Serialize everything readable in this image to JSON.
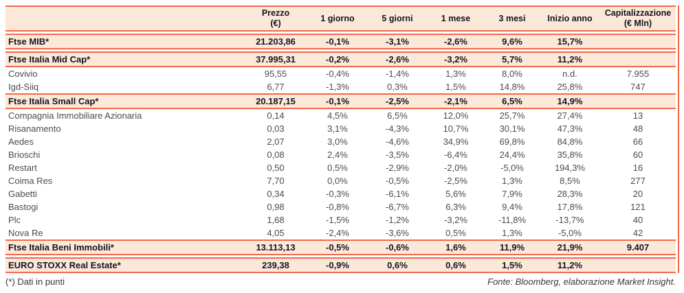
{
  "table": {
    "header": {
      "name_label": "",
      "cols": [
        "Prezzo\n(€)",
        "1 giorno",
        "5 giorni",
        "1 mese",
        "3 mesi",
        "Inizio anno",
        "Capitalizzazione\n(€ Mln)"
      ]
    },
    "rows": [
      {
        "name": "Ftse MIB*",
        "type": "index",
        "values": [
          "21.203,86",
          "-0,1%",
          "-3,1%",
          "-2,6%",
          "9,6%",
          "15,7%",
          ""
        ]
      },
      {
        "name": "Ftse Italia Mid Cap*",
        "type": "index",
        "values": [
          "37.995,31",
          "-0,2%",
          "-2,6%",
          "-3,2%",
          "5,7%",
          "11,2%",
          ""
        ]
      },
      {
        "name": "Covivio",
        "type": "stock",
        "values": [
          "95,55",
          "-0,4%",
          "-1,4%",
          "1,3%",
          "8,0%",
          "n.d.",
          "7.955"
        ]
      },
      {
        "name": "Igd-Siiq",
        "type": "stock",
        "values": [
          "6,77",
          "-1,3%",
          "0,3%",
          "1,5%",
          "14,8%",
          "25,8%",
          "747"
        ]
      },
      {
        "name": "Ftse Italia Small Cap*",
        "type": "index",
        "values": [
          "20.187,15",
          "-0,1%",
          "-2,5%",
          "-2,1%",
          "6,5%",
          "14,9%",
          ""
        ]
      },
      {
        "name": "Compagnia Immobiliare Azionaria",
        "type": "stock",
        "values": [
          "0,14",
          "4,5%",
          "6,5%",
          "12,0%",
          "25,7%",
          "27,4%",
          "13"
        ]
      },
      {
        "name": "Risanamento",
        "type": "stock",
        "values": [
          "0,03",
          "3,1%",
          "-4,3%",
          "10,7%",
          "30,1%",
          "47,3%",
          "48"
        ]
      },
      {
        "name": "Aedes",
        "type": "stock",
        "values": [
          "2,07",
          "3,0%",
          "-4,6%",
          "34,9%",
          "69,8%",
          "84,8%",
          "66"
        ]
      },
      {
        "name": "Brioschi",
        "type": "stock",
        "values": [
          "0,08",
          "2,4%",
          "-3,5%",
          "-6,4%",
          "24,4%",
          "35,8%",
          "60"
        ]
      },
      {
        "name": "Restart",
        "type": "stock",
        "values": [
          "0,50",
          "0,5%",
          "-2,9%",
          "-2,0%",
          "-5,0%",
          "194,3%",
          "16"
        ]
      },
      {
        "name": "Coima Res",
        "type": "stock",
        "values": [
          "7,70",
          "0,0%",
          "-0,5%",
          "-2,5%",
          "1,3%",
          "8,5%",
          "277"
        ]
      },
      {
        "name": "Gabetti",
        "type": "stock",
        "values": [
          "0,34",
          "-0,3%",
          "-6,1%",
          "5,6%",
          "7,9%",
          "28,3%",
          "20"
        ]
      },
      {
        "name": "Bastogi",
        "type": "stock",
        "values": [
          "0,98",
          "-0,8%",
          "-6,7%",
          "6,3%",
          "9,4%",
          "17,8%",
          "121"
        ]
      },
      {
        "name": "Plc",
        "type": "stock",
        "values": [
          "1,68",
          "-1,5%",
          "-1,2%",
          "-3,2%",
          "-11,8%",
          "-13,7%",
          "40"
        ]
      },
      {
        "name": "Nova Re",
        "type": "stock",
        "values": [
          "4,05",
          "-2,4%",
          "-3,6%",
          "0,5%",
          "1,3%",
          "-5,0%",
          "42"
        ]
      },
      {
        "name": "Ftse Italia Beni Immobili*",
        "type": "index",
        "values": [
          "13.113,13",
          "-0,5%",
          "-0,6%",
          "1,6%",
          "11,9%",
          "21,9%",
          "9.407"
        ]
      },
      {
        "name": "EURO STOXX Real Estate*",
        "type": "index",
        "values": [
          "239,38",
          "-0,9%",
          "0,6%",
          "0,6%",
          "1,5%",
          "11,2%",
          ""
        ]
      }
    ]
  },
  "footer": {
    "note": "(*) Dati in punti",
    "source": "Fonte: Bloomberg, elaborazione Market Insight."
  },
  "colors": {
    "accent": "#f2684b",
    "band_bg": "#fce8d8",
    "heading_text": "#14141f",
    "body_text": "#4a4a54"
  }
}
